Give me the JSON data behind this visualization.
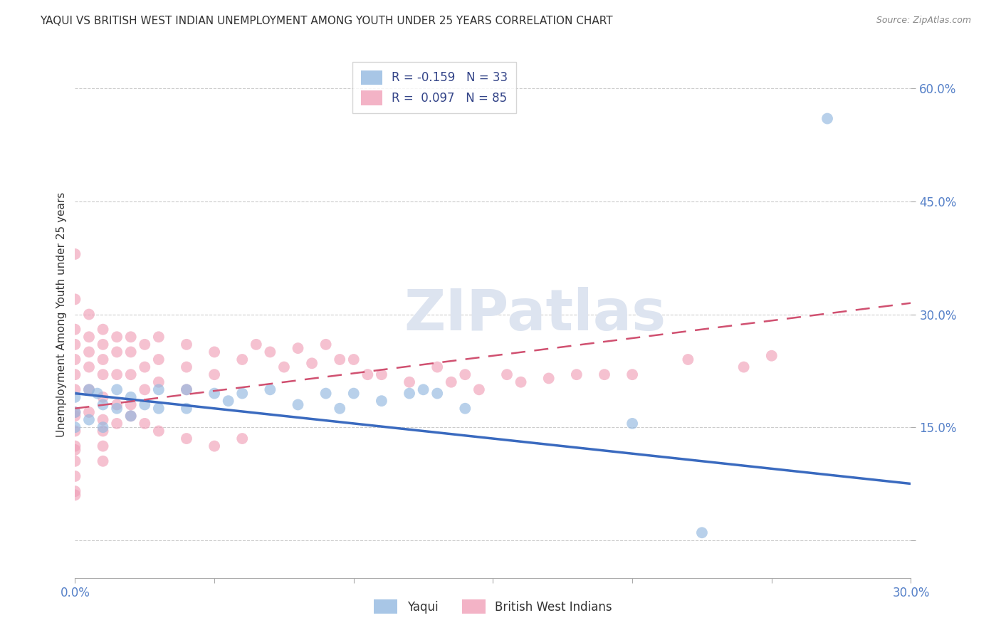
{
  "title": "YAQUI VS BRITISH WEST INDIAN UNEMPLOYMENT AMONG YOUTH UNDER 25 YEARS CORRELATION CHART",
  "source": "Source: ZipAtlas.com",
  "ylabel": "Unemployment Among Youth under 25 years",
  "x_min": 0.0,
  "x_max": 0.3,
  "y_min": -0.05,
  "y_max": 0.65,
  "watermark": "ZIPatlas",
  "yaqui_color": "#92b8e0",
  "bwi_color": "#f0a0b8",
  "trend_yaqui_color": "#3a6abf",
  "trend_bwi_color": "#d05070",
  "yaqui_trend_x": [
    0.0,
    0.3
  ],
  "yaqui_trend_y": [
    0.195,
    0.075
  ],
  "bwi_trend_x": [
    0.0,
    0.3
  ],
  "bwi_trend_y": [
    0.175,
    0.315
  ],
  "yaqui_x": [
    0.0,
    0.0,
    0.0,
    0.005,
    0.005,
    0.008,
    0.01,
    0.01,
    0.015,
    0.015,
    0.02,
    0.02,
    0.025,
    0.03,
    0.03,
    0.04,
    0.04,
    0.05,
    0.055,
    0.06,
    0.07,
    0.08,
    0.09,
    0.095,
    0.1,
    0.11,
    0.12,
    0.125,
    0.13,
    0.14,
    0.2,
    0.225,
    0.27
  ],
  "yaqui_y": [
    0.19,
    0.17,
    0.15,
    0.2,
    0.16,
    0.195,
    0.18,
    0.15,
    0.2,
    0.175,
    0.19,
    0.165,
    0.18,
    0.2,
    0.175,
    0.2,
    0.175,
    0.195,
    0.185,
    0.195,
    0.2,
    0.18,
    0.195,
    0.175,
    0.195,
    0.185,
    0.195,
    0.2,
    0.195,
    0.175,
    0.155,
    0.01,
    0.56
  ],
  "bwi_x": [
    0.0,
    0.0,
    0.0,
    0.0,
    0.0,
    0.0,
    0.0,
    0.0,
    0.0,
    0.0,
    0.005,
    0.005,
    0.005,
    0.005,
    0.005,
    0.005,
    0.01,
    0.01,
    0.01,
    0.01,
    0.01,
    0.01,
    0.015,
    0.015,
    0.015,
    0.015,
    0.02,
    0.02,
    0.02,
    0.02,
    0.025,
    0.025,
    0.025,
    0.03,
    0.03,
    0.03,
    0.04,
    0.04,
    0.04,
    0.05,
    0.05,
    0.06,
    0.065,
    0.07,
    0.075,
    0.08,
    0.085,
    0.09,
    0.095,
    0.1,
    0.105,
    0.11,
    0.12,
    0.13,
    0.135,
    0.14,
    0.145,
    0.155,
    0.16,
    0.17,
    0.18,
    0.19,
    0.2,
    0.22,
    0.24,
    0.25,
    0.0,
    0.0,
    0.0,
    0.0,
    0.0,
    0.0,
    0.01,
    0.01,
    0.01,
    0.015,
    0.02,
    0.025,
    0.03,
    0.04,
    0.05,
    0.06
  ],
  "bwi_y": [
    0.38,
    0.32,
    0.28,
    0.26,
    0.24,
    0.22,
    0.2,
    0.17,
    0.12,
    0.06,
    0.3,
    0.27,
    0.25,
    0.23,
    0.2,
    0.17,
    0.28,
    0.26,
    0.24,
    0.22,
    0.19,
    0.16,
    0.27,
    0.25,
    0.22,
    0.18,
    0.27,
    0.25,
    0.22,
    0.18,
    0.26,
    0.23,
    0.2,
    0.27,
    0.24,
    0.21,
    0.26,
    0.23,
    0.2,
    0.25,
    0.22,
    0.24,
    0.26,
    0.25,
    0.23,
    0.255,
    0.235,
    0.26,
    0.24,
    0.24,
    0.22,
    0.22,
    0.21,
    0.23,
    0.21,
    0.22,
    0.2,
    0.22,
    0.21,
    0.215,
    0.22,
    0.22,
    0.22,
    0.24,
    0.23,
    0.245,
    0.165,
    0.145,
    0.125,
    0.105,
    0.085,
    0.065,
    0.145,
    0.125,
    0.105,
    0.155,
    0.165,
    0.155,
    0.145,
    0.135,
    0.125,
    0.135
  ]
}
